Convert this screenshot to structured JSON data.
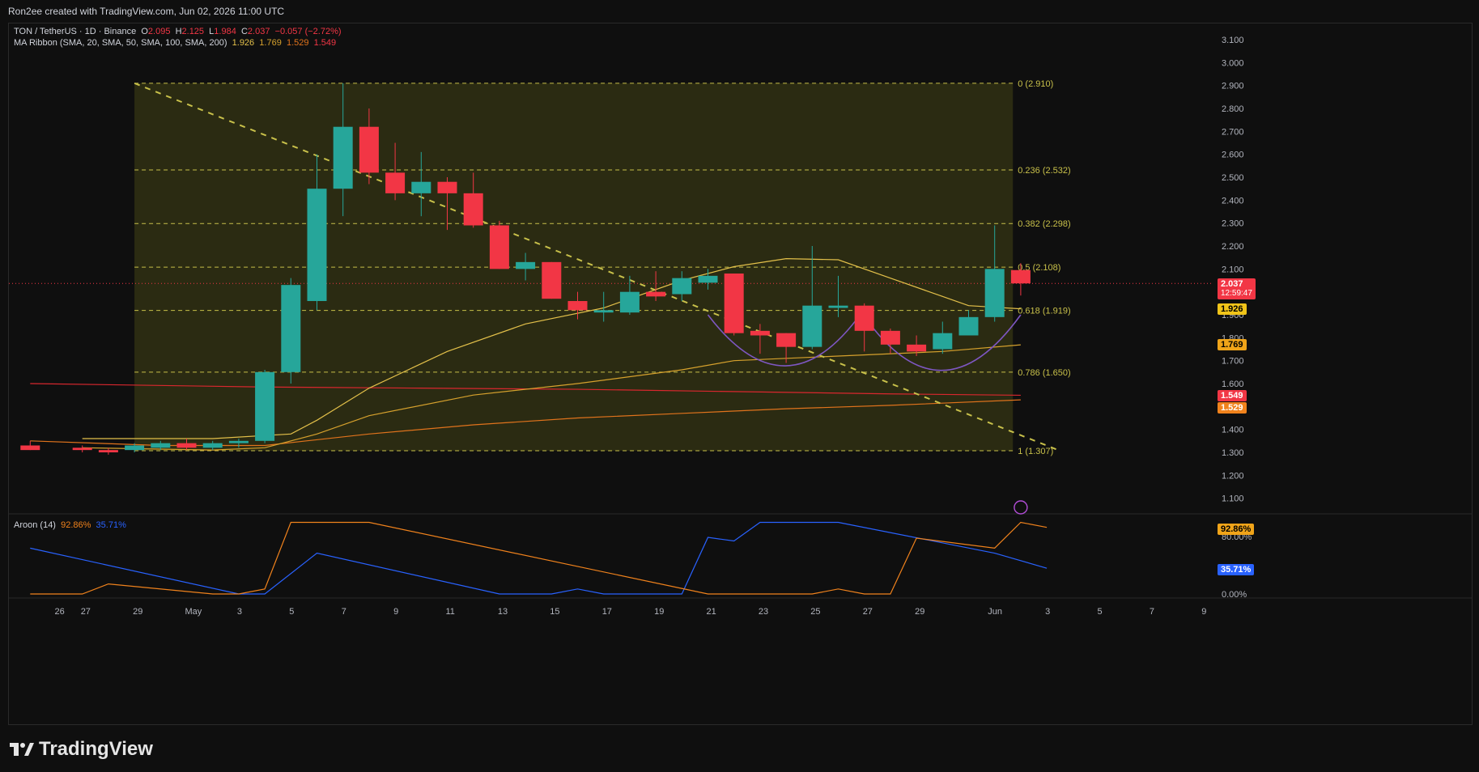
{
  "header": {
    "credit": "Ron2ee created with TradingView.com, Jun 02, 2026 11:00 UTC"
  },
  "legend": {
    "symbol": "TON / TetherUS · 1D · Binance",
    "o_label": "O",
    "o": "2.095",
    "h_label": "H",
    "h": "2.125",
    "l_label": "L",
    "l": "1.984",
    "c_label": "C",
    "c": "2.037",
    "change": "−0.057 (−2.72%)",
    "ma_label": "MA Ribbon (SMA, 20, SMA, 50, SMA, 100, SMA, 200)",
    "ma_values": [
      "1.926",
      "1.769",
      "1.529",
      "1.549"
    ]
  },
  "price_chips": {
    "last": "2.037",
    "countdown": "12:59:47",
    "sma20": "1.926",
    "sma50": "1.769",
    "sma200": "1.549",
    "sma100": "1.529"
  },
  "aroon": {
    "label": "Aroon (14)",
    "up": "92.86%",
    "down": "35.71%",
    "chip_up": "92.86%",
    "chip_down": "35.71%"
  },
  "colors": {
    "up": "#26a69a",
    "down": "#f23645",
    "fib": "#c8c04a",
    "zone": "#2b2b12",
    "sma20": "#e3c04a",
    "sma50": "#d6a12d",
    "sma100": "#e0731c",
    "sma200": "#d9272e",
    "aroon_up": "#f0821c",
    "aroon_down": "#2962ff",
    "pattern": "#7e57c2"
  },
  "footer": {
    "brand": "TradingView"
  },
  "chart_data": {
    "type": "candlestick",
    "x_labels": [
      "26",
      "27",
      "29",
      "May",
      "3",
      "5",
      "7",
      "9",
      "11",
      "13",
      "15",
      "17",
      "19",
      "21",
      "23",
      "25",
      "27",
      "29",
      "Jun",
      "3",
      "5",
      "7",
      "9"
    ],
    "y_ticks": [
      "3.100",
      "3.000",
      "2.900",
      "2.800",
      "2.700",
      "2.600",
      "2.500",
      "2.400",
      "2.300",
      "2.200",
      "2.100",
      "1.900",
      "1.800",
      "1.700",
      "1.600",
      "1.400",
      "1.300",
      "1.200",
      "1.100"
    ],
    "ylim": [
      1.05,
      3.15
    ],
    "aroon_ticks": [
      "80.00%",
      "0.00%"
    ],
    "fib_levels": [
      {
        "ratio": "0",
        "price": 2.91,
        "label": "0 (2.910)"
      },
      {
        "ratio": "0.236",
        "price": 2.532,
        "label": "0.236 (2.532)"
      },
      {
        "ratio": "0.382",
        "price": 2.298,
        "label": "0.382 (2.298)"
      },
      {
        "ratio": "0.5",
        "price": 2.108,
        "label": "0.5 (2.108)"
      },
      {
        "ratio": "0.618",
        "price": 1.919,
        "label": "0.618 (1.919)"
      },
      {
        "ratio": "0.786",
        "price": 1.65,
        "label": "0.786 (1.650)"
      },
      {
        "ratio": "1",
        "price": 1.307,
        "label": "1 (1.307)"
      }
    ],
    "candles": [
      {
        "d": -1,
        "o": 1.33,
        "h": 1.35,
        "l": 1.31,
        "c": 1.31
      },
      {
        "d": 1,
        "o": 1.32,
        "h": 1.33,
        "l": 1.3,
        "c": 1.31
      },
      {
        "d": 2,
        "o": 1.31,
        "h": 1.32,
        "l": 1.29,
        "c": 1.3
      },
      {
        "d": 3,
        "o": 1.31,
        "h": 1.34,
        "l": 1.3,
        "c": 1.33
      },
      {
        "d": 4,
        "o": 1.32,
        "h": 1.35,
        "l": 1.31,
        "c": 1.34
      },
      {
        "d": 5,
        "o": 1.34,
        "h": 1.36,
        "l": 1.31,
        "c": 1.32
      },
      {
        "d": 6,
        "o": 1.32,
        "h": 1.35,
        "l": 1.31,
        "c": 1.34
      },
      {
        "d": 7,
        "o": 1.34,
        "h": 1.36,
        "l": 1.32,
        "c": 1.35
      },
      {
        "d": 8,
        "o": 1.35,
        "h": 1.66,
        "l": 1.34,
        "c": 1.65
      },
      {
        "d": 9,
        "o": 1.65,
        "h": 2.06,
        "l": 1.6,
        "c": 2.03
      },
      {
        "d": 10,
        "o": 1.96,
        "h": 2.6,
        "l": 1.92,
        "c": 2.45
      },
      {
        "d": 11,
        "o": 2.45,
        "h": 2.91,
        "l": 2.33,
        "c": 2.72
      },
      {
        "d": 12,
        "o": 2.72,
        "h": 2.8,
        "l": 2.47,
        "c": 2.52
      },
      {
        "d": 13,
        "o": 2.52,
        "h": 2.65,
        "l": 2.4,
        "c": 2.43
      },
      {
        "d": 14,
        "o": 2.43,
        "h": 2.61,
        "l": 2.33,
        "c": 2.48
      },
      {
        "d": 15,
        "o": 2.48,
        "h": 2.5,
        "l": 2.27,
        "c": 2.43
      },
      {
        "d": 16,
        "o": 2.43,
        "h": 2.52,
        "l": 2.28,
        "c": 2.29
      },
      {
        "d": 17,
        "o": 2.29,
        "h": 2.31,
        "l": 2.1,
        "c": 2.1
      },
      {
        "d": 18,
        "o": 2.1,
        "h": 2.17,
        "l": 2.05,
        "c": 2.13
      },
      {
        "d": 19,
        "o": 2.13,
        "h": 2.13,
        "l": 1.97,
        "c": 1.97
      },
      {
        "d": 20,
        "o": 1.96,
        "h": 2.0,
        "l": 1.88,
        "c": 1.92
      },
      {
        "d": 21,
        "o": 1.91,
        "h": 2.0,
        "l": 1.87,
        "c": 1.92
      },
      {
        "d": 22,
        "o": 1.91,
        "h": 2.07,
        "l": 1.9,
        "c": 2.0
      },
      {
        "d": 23,
        "o": 2.0,
        "h": 2.09,
        "l": 1.96,
        "c": 1.98
      },
      {
        "d": 24,
        "o": 1.99,
        "h": 2.09,
        "l": 1.96,
        "c": 2.06
      },
      {
        "d": 25,
        "o": 2.04,
        "h": 2.1,
        "l": 2.01,
        "c": 2.07
      },
      {
        "d": 26,
        "o": 2.08,
        "h": 2.08,
        "l": 1.81,
        "c": 1.82
      },
      {
        "d": 27,
        "o": 1.83,
        "h": 1.86,
        "l": 1.73,
        "c": 1.81
      },
      {
        "d": 28,
        "o": 1.82,
        "h": 1.82,
        "l": 1.69,
        "c": 1.76
      },
      {
        "d": 29,
        "o": 1.76,
        "h": 2.2,
        "l": 1.75,
        "c": 1.94
      },
      {
        "d": 30,
        "o": 1.93,
        "h": 2.07,
        "l": 1.89,
        "c": 1.94
      },
      {
        "d": 31,
        "o": 1.94,
        "h": 1.95,
        "l": 1.74,
        "c": 1.83
      },
      {
        "d": 32,
        "o": 1.83,
        "h": 1.84,
        "l": 1.73,
        "c": 1.77
      },
      {
        "d": 33,
        "o": 1.77,
        "h": 1.81,
        "l": 1.72,
        "c": 1.74
      },
      {
        "d": 34,
        "o": 1.75,
        "h": 1.87,
        "l": 1.73,
        "c": 1.82
      },
      {
        "d": 35,
        "o": 1.81,
        "h": 1.92,
        "l": 1.81,
        "c": 1.89
      },
      {
        "d": 36,
        "o": 1.89,
        "h": 2.29,
        "l": 1.87,
        "c": 2.1
      },
      {
        "d": 37,
        "o": 2.095,
        "h": 2.125,
        "l": 1.984,
        "c": 2.037
      }
    ],
    "sma20": [
      [
        1,
        1.36
      ],
      [
        6,
        1.36
      ],
      [
        9,
        1.38
      ],
      [
        10,
        1.44
      ],
      [
        12,
        1.58
      ],
      [
        15,
        1.74
      ],
      [
        18,
        1.86
      ],
      [
        21,
        1.93
      ],
      [
        24,
        2.05
      ],
      [
        26,
        2.11
      ],
      [
        28,
        2.145
      ],
      [
        30,
        2.14
      ],
      [
        32,
        2.06
      ],
      [
        34,
        1.98
      ],
      [
        35,
        1.94
      ],
      [
        37,
        1.926
      ]
    ],
    "sma50": [
      [
        1,
        1.32
      ],
      [
        6,
        1.31
      ],
      [
        8,
        1.32
      ],
      [
        10,
        1.38
      ],
      [
        12,
        1.46
      ],
      [
        16,
        1.55
      ],
      [
        20,
        1.6
      ],
      [
        24,
        1.66
      ],
      [
        26,
        1.7
      ],
      [
        30,
        1.72
      ],
      [
        34,
        1.74
      ],
      [
        37,
        1.769
      ]
    ],
    "sma100": [
      [
        -1,
        1.35
      ],
      [
        4,
        1.33
      ],
      [
        8,
        1.33
      ],
      [
        12,
        1.38
      ],
      [
        16,
        1.42
      ],
      [
        20,
        1.45
      ],
      [
        24,
        1.47
      ],
      [
        28,
        1.49
      ],
      [
        32,
        1.505
      ],
      [
        37,
        1.529
      ]
    ],
    "sma200": [
      [
        -1,
        1.6
      ],
      [
        8,
        1.585
      ],
      [
        14,
        1.58
      ],
      [
        20,
        1.575
      ],
      [
        26,
        1.565
      ],
      [
        32,
        1.555
      ],
      [
        37,
        1.549
      ]
    ],
    "trendline": [
      [
        3,
        2.91
      ],
      [
        38.5,
        1.307
      ]
    ],
    "aroon_up": [
      [
        -1,
        0
      ],
      [
        1,
        0
      ],
      [
        2,
        14
      ],
      [
        6,
        0
      ],
      [
        7,
        0
      ],
      [
        8,
        7
      ],
      [
        9,
        100
      ],
      [
        12,
        100
      ],
      [
        25,
        0
      ],
      [
        29,
        0
      ],
      [
        30,
        7
      ],
      [
        31,
        0
      ],
      [
        32,
        0
      ],
      [
        33,
        78
      ],
      [
        36,
        64
      ],
      [
        37,
        100
      ],
      [
        38,
        93
      ]
    ],
    "aroon_down": [
      [
        -1,
        64
      ],
      [
        7,
        0
      ],
      [
        8,
        0
      ],
      [
        10,
        57
      ],
      [
        17,
        0
      ],
      [
        19,
        0
      ],
      [
        20,
        7
      ],
      [
        21,
        0
      ],
      [
        24,
        0
      ],
      [
        25,
        79
      ],
      [
        26,
        74
      ],
      [
        27,
        100
      ],
      [
        30,
        100
      ],
      [
        36,
        57
      ],
      [
        38,
        36
      ]
    ]
  }
}
